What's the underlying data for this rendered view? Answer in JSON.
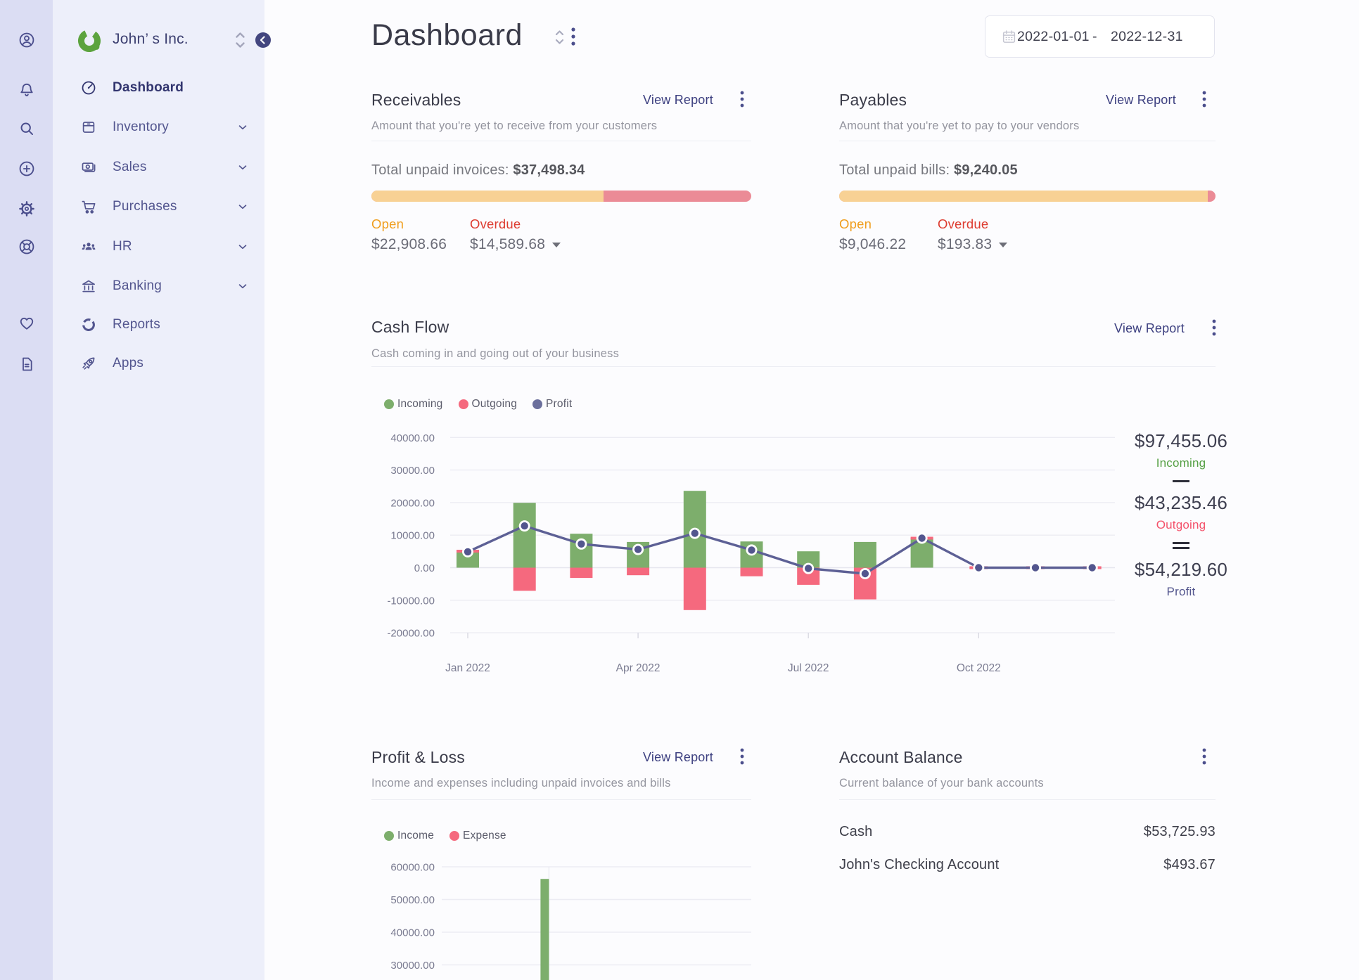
{
  "company": {
    "name": "John’ s Inc."
  },
  "rail": {
    "icons": [
      "user-circle",
      "bell",
      "search",
      "plus-circle",
      "gear",
      "life-ring",
      "heart",
      "document"
    ]
  },
  "sidebar": {
    "items": [
      {
        "label": "Dashboard",
        "active": true
      },
      {
        "label": "Inventory",
        "expandable": true
      },
      {
        "label": "Sales",
        "expandable": true
      },
      {
        "label": "Purchases",
        "expandable": true
      },
      {
        "label": "HR",
        "expandable": true
      },
      {
        "label": "Banking",
        "expandable": true
      },
      {
        "label": "Reports",
        "expandable": false
      },
      {
        "label": "Apps",
        "expandable": false
      }
    ]
  },
  "header": {
    "title": "Dashboard",
    "date_start": "2022-01-01",
    "date_sep": "-",
    "date_end": "2022-12-31"
  },
  "receivables": {
    "title": "Receivables",
    "view_report": "View Report",
    "subtitle": "Amount that you're yet to receive from your customers",
    "total_label": "Total unpaid invoices:",
    "total_value": "$37,498.34",
    "open_label": "Open",
    "open_value": "$22,908.66",
    "overdue_label": "Overdue",
    "overdue_value": "$14,589.68"
  },
  "payables": {
    "title": "Payables",
    "view_report": "View Report",
    "subtitle": "Amount that you're yet to pay to your vendors",
    "total_label": "Total unpaid bills:",
    "total_value": "$9,240.05",
    "open_label": "Open",
    "open_value": "$9,046.22",
    "overdue_label": "Overdue",
    "overdue_value": "$193.83"
  },
  "cash_flow": {
    "title": "Cash Flow",
    "view_report": "View Report",
    "subtitle": "Cash coming in and going out of your business",
    "summary": {
      "incoming_value": "$97,455.06",
      "incoming_label": "Incoming",
      "outgoing_value": "$43,235.46",
      "outgoing_label": "Outgoing",
      "profit_value": "$54,219.60",
      "profit_label": "Profit"
    }
  },
  "profit_loss": {
    "title": "Profit & Loss",
    "view_report": "View Report",
    "subtitle": "Income and expenses including unpaid invoices and bills"
  },
  "account_balance": {
    "title": "Account Balance",
    "subtitle": "Current balance of your bank accounts",
    "rows": [
      {
        "name": "Cash",
        "value": "$53,725.93"
      },
      {
        "name": "John's Checking Account",
        "value": "$493.67"
      }
    ]
  },
  "chart_data": [
    {
      "id": "cash-flow",
      "type": "mixed-bar-line",
      "x_tick_labels": [
        "Jan 2022",
        "Apr 2022",
        "Jul 2022",
        "Oct 2022"
      ],
      "points_per_year": 12,
      "ylim": [
        -20000,
        40000
      ],
      "ytick_step": 10000,
      "series": [
        {
          "name": "Incoming",
          "type": "bar",
          "color": "#7dae6c",
          "values": [
            5180,
            19930,
            10430,
            7910,
            23600,
            8060,
            5040,
            7910,
            9180,
            0,
            0,
            0
          ]
        },
        {
          "name": "Outgoing",
          "type": "bar",
          "color": "#f5697e",
          "values": [
            300,
            7100,
            3160,
            2310,
            13030,
            2640,
            5270,
            9750,
            100,
            0,
            0,
            0
          ]
        },
        {
          "name": "Profit",
          "type": "line",
          "color": "#5d6095",
          "values": [
            4880,
            12830,
            7270,
            5600,
            10570,
            5420,
            -230,
            -1840,
            9080,
            0,
            0,
            0
          ]
        }
      ],
      "legend": [
        "Incoming",
        "Outgoing",
        "Profit"
      ],
      "legend_colors": [
        "#7dae6c",
        "#f5697e",
        "#6b6f9c"
      ]
    },
    {
      "id": "profit-loss",
      "type": "bar",
      "visible_y_ticks": [
        60000,
        50000,
        40000,
        30000
      ],
      "series": [
        {
          "name": "Income",
          "color": "#7dae6c",
          "values": [
            null,
            null,
            null,
            56300,
            null,
            null,
            null,
            null,
            null,
            null,
            null,
            null
          ]
        },
        {
          "name": "Expense",
          "color": "#f5697e",
          "values": [
            null,
            null,
            null,
            null,
            null,
            null,
            null,
            null,
            null,
            null,
            null,
            null
          ]
        }
      ],
      "legend": [
        "Income",
        "Expense"
      ],
      "legend_colors": [
        "#7dae6c",
        "#f5697e"
      ],
      "clipped_bottom": true
    }
  ]
}
